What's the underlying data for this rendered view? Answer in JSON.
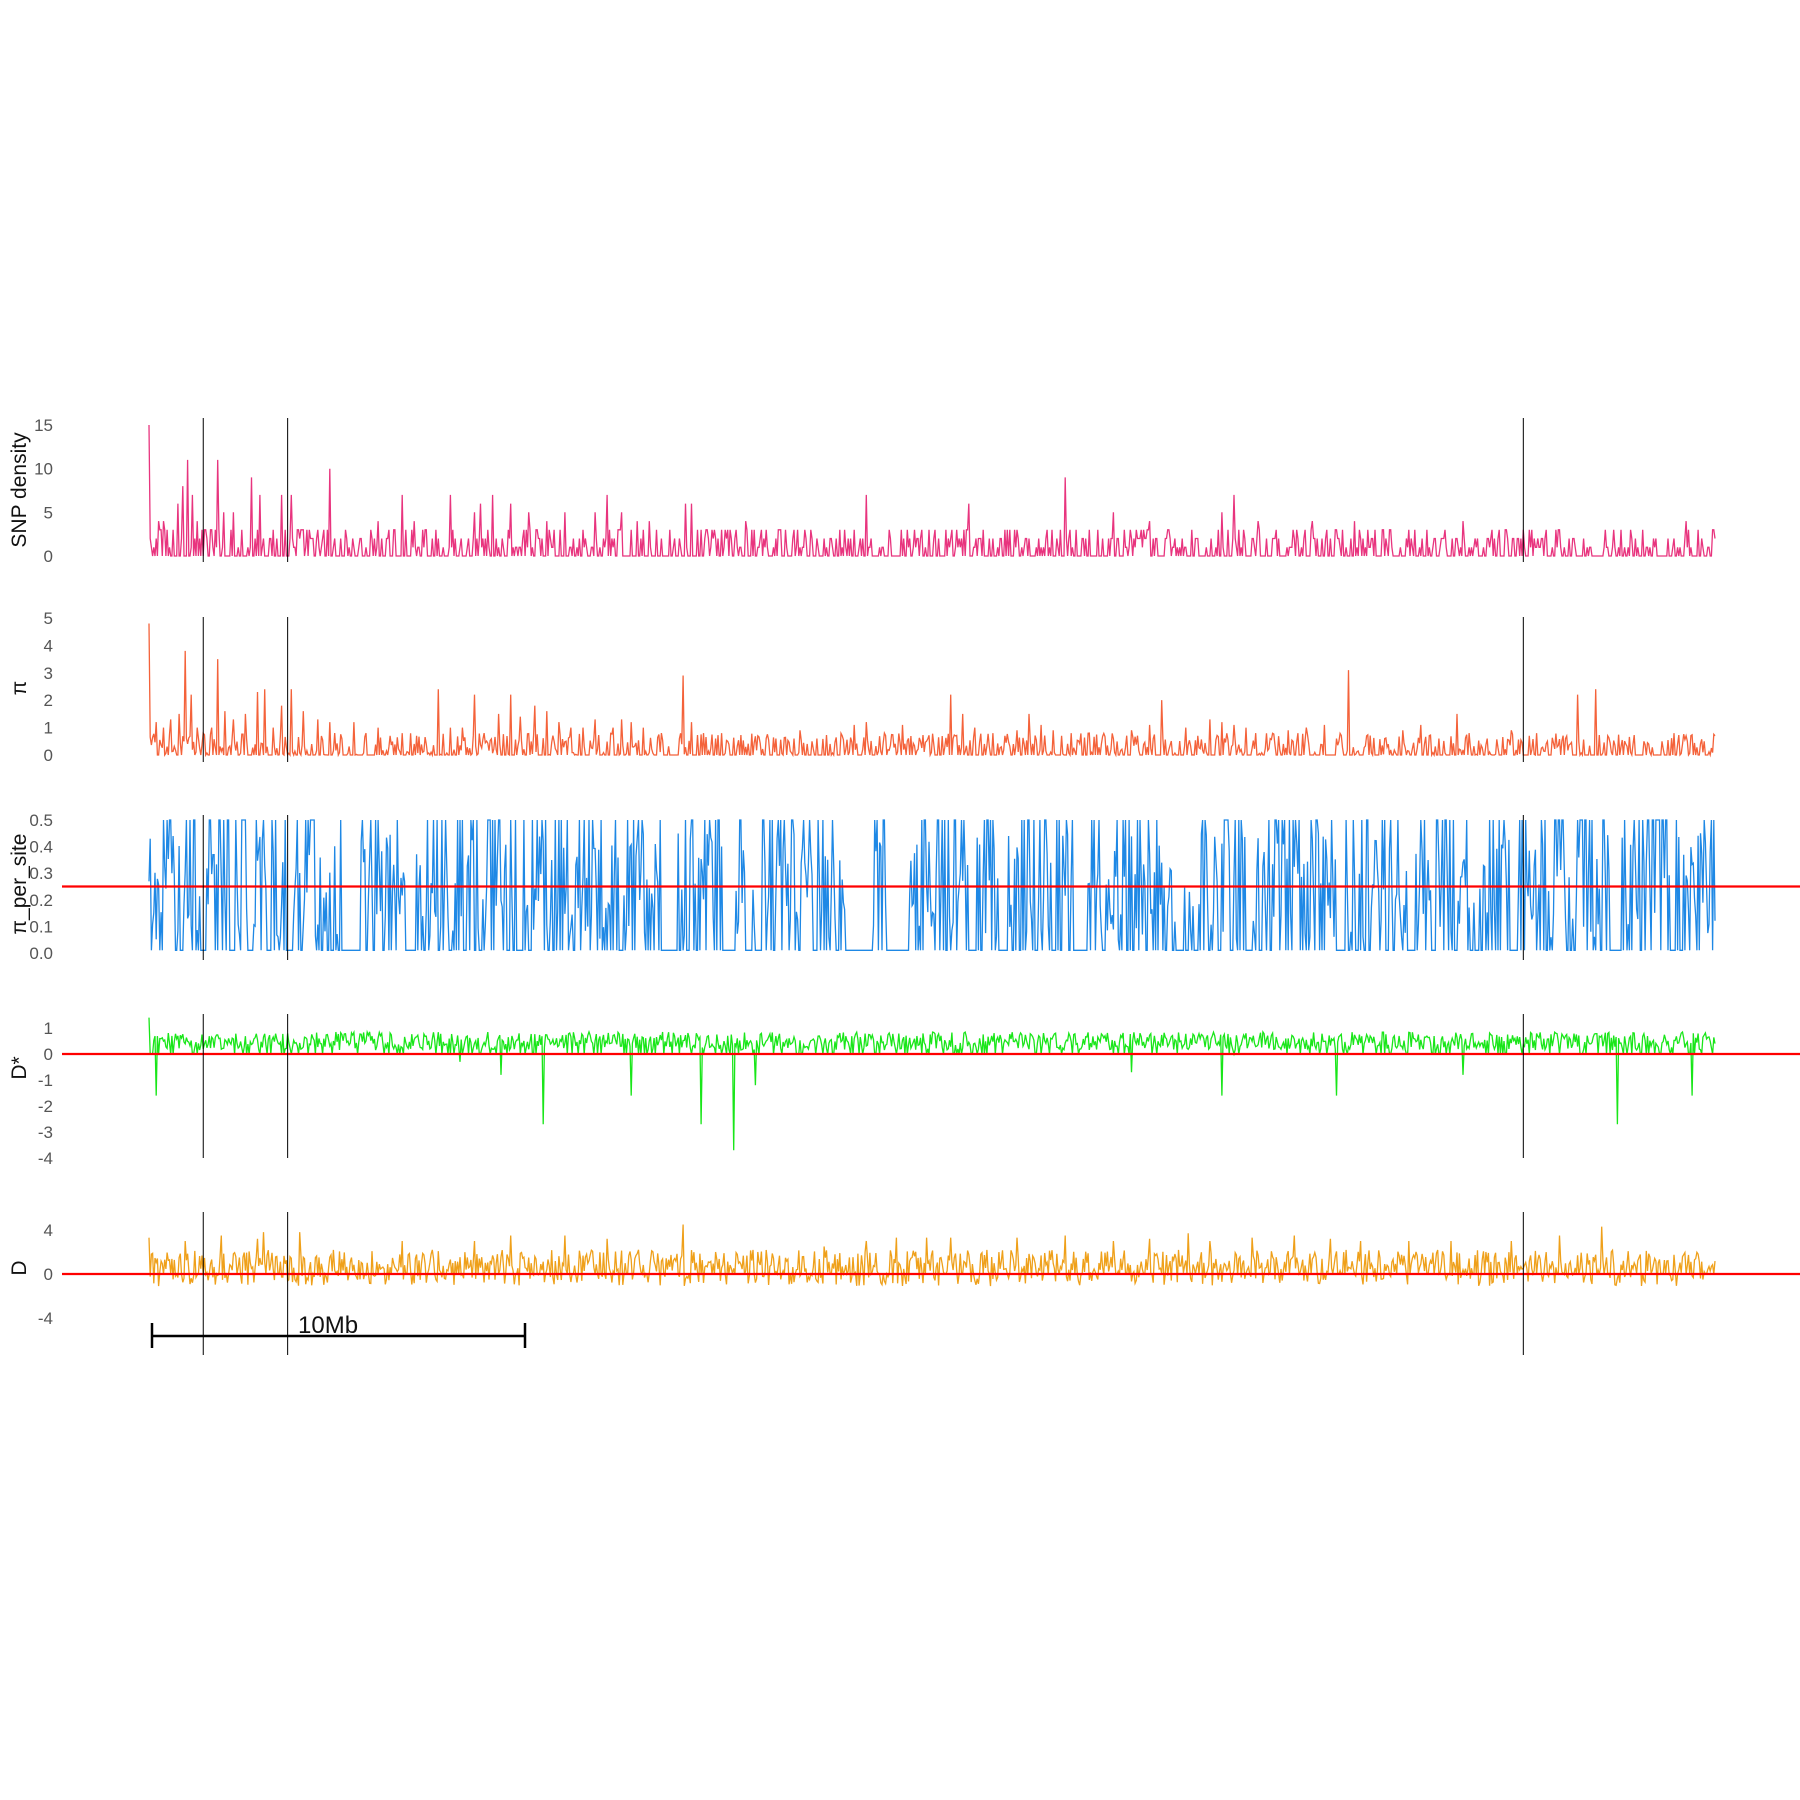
{
  "figure": {
    "panel_order": [
      "snp_density",
      "pi",
      "pi_per_site",
      "d_star",
      "d"
    ]
  },
  "colors": {
    "snp_density": "#e8347e",
    "pi": "#f4623a",
    "pi_per_site": "#1e88e5",
    "d_star": "#19e619",
    "d": "#efa01a",
    "reference_line": "#ff0000",
    "marker_line": "#000000",
    "tick_text": "#555555"
  },
  "scale_bar": {
    "label": "10Mb",
    "length_mb": 10
  },
  "chart_data": [
    {
      "id": "snp_density",
      "type": "line",
      "ylabel": "SNP density",
      "yticks": [
        "0",
        "5",
        "10",
        "15"
      ],
      "ylim": [
        0,
        15
      ],
      "n_windows": 1300,
      "peaks": [
        [
          0,
          15
        ],
        [
          8,
          4
        ],
        [
          12,
          4
        ],
        [
          15,
          3
        ],
        [
          20,
          3
        ],
        [
          24,
          6
        ],
        [
          28,
          8
        ],
        [
          32,
          11
        ],
        [
          36,
          7
        ],
        [
          40,
          4
        ],
        [
          57,
          11
        ],
        [
          62,
          5
        ],
        [
          70,
          5
        ],
        [
          85,
          9
        ],
        [
          92,
          7
        ],
        [
          100,
          2
        ],
        [
          110,
          7
        ],
        [
          118,
          7
        ],
        [
          128,
          3
        ],
        [
          150,
          10
        ],
        [
          175,
          2
        ],
        [
          190,
          4
        ],
        [
          210,
          7
        ],
        [
          220,
          4
        ],
        [
          230,
          3
        ],
        [
          250,
          7
        ],
        [
          270,
          5
        ],
        [
          275,
          6
        ],
        [
          285,
          7
        ],
        [
          300,
          6
        ],
        [
          315,
          5
        ],
        [
          330,
          4
        ],
        [
          345,
          5
        ],
        [
          370,
          5
        ],
        [
          380,
          7
        ],
        [
          392,
          5
        ],
        [
          400,
          3
        ],
        [
          405,
          4
        ],
        [
          415,
          4
        ],
        [
          440,
          2
        ],
        [
          445,
          6
        ],
        [
          450,
          6
        ],
        [
          470,
          2
        ],
        [
          480,
          3
        ],
        [
          495,
          4
        ],
        [
          510,
          2
        ],
        [
          522,
          3
        ],
        [
          535,
          3
        ],
        [
          545,
          2
        ],
        [
          560,
          2
        ],
        [
          570,
          2
        ],
        [
          582,
          2
        ],
        [
          595,
          7
        ],
        [
          615,
          2
        ],
        [
          640,
          2
        ],
        [
          665,
          2
        ],
        [
          680,
          6
        ],
        [
          700,
          2
        ],
        [
          720,
          3
        ],
        [
          730,
          2
        ],
        [
          745,
          3
        ],
        [
          760,
          9
        ],
        [
          780,
          3
        ],
        [
          800,
          5
        ],
        [
          815,
          2
        ],
        [
          830,
          4
        ],
        [
          845,
          3
        ],
        [
          870,
          2
        ],
        [
          890,
          5
        ],
        [
          900,
          7
        ],
        [
          920,
          4
        ],
        [
          935,
          3
        ],
        [
          950,
          2
        ],
        [
          965,
          4
        ],
        [
          980,
          2
        ],
        [
          1000,
          4
        ],
        [
          1015,
          2
        ],
        [
          1030,
          3
        ],
        [
          1045,
          3
        ],
        [
          1060,
          3
        ],
        [
          1075,
          3
        ],
        [
          1090,
          4
        ],
        [
          1110,
          2
        ],
        [
          1125,
          3
        ],
        [
          1140,
          3
        ],
        [
          1155,
          2
        ],
        [
          1170,
          3
        ],
        [
          1190,
          2
        ],
        [
          1210,
          1
        ],
        [
          1235,
          1
        ],
        [
          1250,
          2
        ],
        [
          1265,
          2
        ],
        [
          1275,
          4
        ],
        [
          1285,
          3
        ],
        [
          1299,
          2
        ]
      ]
    },
    {
      "id": "pi",
      "type": "line",
      "ylabel": "π",
      "yticks": [
        "0",
        "1",
        "2",
        "3",
        "4",
        "5"
      ],
      "ylim": [
        0,
        5
      ],
      "n_windows": 1300,
      "peaks": [
        [
          0,
          4.8
        ],
        [
          6,
          1.2
        ],
        [
          12,
          1.0
        ],
        [
          18,
          1.3
        ],
        [
          25,
          1.5
        ],
        [
          30,
          3.8
        ],
        [
          35,
          2.2
        ],
        [
          40,
          1.0
        ],
        [
          45,
          0.8
        ],
        [
          52,
          1.0
        ],
        [
          57,
          3.5
        ],
        [
          63,
          1.6
        ],
        [
          70,
          1.3
        ],
        [
          80,
          1.5
        ],
        [
          90,
          2.3
        ],
        [
          96,
          2.4
        ],
        [
          103,
          1.0
        ],
        [
          110,
          1.8
        ],
        [
          118,
          2.4
        ],
        [
          128,
          1.6
        ],
        [
          140,
          1.3
        ],
        [
          150,
          1.2
        ],
        [
          160,
          0.6
        ],
        [
          170,
          1.2
        ],
        [
          180,
          0.8
        ],
        [
          190,
          1.0
        ],
        [
          200,
          0.7
        ],
        [
          210,
          0.8
        ],
        [
          222,
          0.7
        ],
        [
          240,
          2.4
        ],
        [
          250,
          1.0
        ],
        [
          260,
          1.0
        ],
        [
          270,
          2.2
        ],
        [
          278,
          0.8
        ],
        [
          290,
          1.5
        ],
        [
          300,
          2.2
        ],
        [
          308,
          1.4
        ],
        [
          320,
          1.8
        ],
        [
          330,
          1.6
        ],
        [
          340,
          1.2
        ],
        [
          350,
          1.0
        ],
        [
          360,
          1.0
        ],
        [
          370,
          1.3
        ],
        [
          385,
          1.0
        ],
        [
          392,
          1.3
        ],
        [
          400,
          1.2
        ],
        [
          410,
          1.0
        ],
        [
          425,
          0.8
        ],
        [
          440,
          0.6
        ],
        [
          443,
          2.9
        ],
        [
          450,
          1.2
        ],
        [
          460,
          0.8
        ],
        [
          470,
          0.6
        ],
        [
          480,
          0.5
        ],
        [
          495,
          0.3
        ],
        [
          505,
          0.7
        ],
        [
          520,
          0.6
        ],
        [
          535,
          0.6
        ],
        [
          540,
          0.9
        ],
        [
          550,
          0.5
        ],
        [
          565,
          0.4
        ],
        [
          575,
          0.7
        ],
        [
          585,
          1.1
        ],
        [
          595,
          1.2
        ],
        [
          610,
          0.8
        ],
        [
          625,
          1.1
        ],
        [
          640,
          0.5
        ],
        [
          665,
          2.2
        ],
        [
          675,
          1.5
        ],
        [
          685,
          1.0
        ],
        [
          700,
          0.8
        ],
        [
          710,
          0.7
        ],
        [
          720,
          0.9
        ],
        [
          730,
          1.5
        ],
        [
          740,
          1.1
        ],
        [
          750,
          0.9
        ],
        [
          765,
          0.8
        ],
        [
          780,
          0.8
        ],
        [
          790,
          0.4
        ],
        [
          800,
          0.6
        ],
        [
          815,
          0.9
        ],
        [
          830,
          1.1
        ],
        [
          840,
          2.0
        ],
        [
          860,
          1.0
        ],
        [
          870,
          0.7
        ],
        [
          880,
          1.3
        ],
        [
          890,
          1.2
        ],
        [
          900,
          1.1
        ],
        [
          910,
          1.0
        ],
        [
          918,
          0.8
        ],
        [
          930,
          0.6
        ],
        [
          945,
          0.9
        ],
        [
          960,
          1.0
        ],
        [
          975,
          1.1
        ],
        [
          985,
          0.6
        ],
        [
          995,
          3.1
        ],
        [
          1010,
          0.7
        ],
        [
          1025,
          0.6
        ],
        [
          1040,
          0.9
        ],
        [
          1055,
          1.1
        ],
        [
          1070,
          0.6
        ],
        [
          1085,
          1.5
        ],
        [
          1095,
          0.8
        ],
        [
          1110,
          0.6
        ],
        [
          1130,
          0.9
        ],
        [
          1145,
          0.7
        ],
        [
          1160,
          0.5
        ],
        [
          1175,
          0.6
        ],
        [
          1185,
          2.2
        ],
        [
          1200,
          2.4
        ],
        [
          1210,
          0.7
        ],
        [
          1225,
          0.4
        ],
        [
          1240,
          0.5
        ],
        [
          1255,
          0.5
        ],
        [
          1265,
          0.8
        ],
        [
          1275,
          0.7
        ],
        [
          1290,
          0.5
        ],
        [
          1299,
          0.7
        ]
      ]
    },
    {
      "id": "pi_per_site",
      "type": "line",
      "ylabel": "π_per_site",
      "yticks": [
        "0.0",
        "0.1",
        "0.2",
        "0.3",
        "0.4",
        "0.5"
      ],
      "ylim": [
        0,
        0.5
      ],
      "n_windows": 1300,
      "reference_line": 0.25,
      "gaps": [
        [
          45,
          47
        ],
        [
          114,
          118
        ],
        [
          160,
          175
        ],
        [
          215,
          218
        ],
        [
          305,
          310
        ],
        [
          425,
          438
        ],
        [
          480,
          483
        ],
        [
          495,
          500
        ],
        [
          578,
          600
        ],
        [
          612,
          630
        ],
        [
          680,
          685
        ],
        [
          705,
          712
        ],
        [
          768,
          778
        ],
        [
          852,
          858
        ],
        [
          910,
          915
        ],
        [
          985,
          992
        ],
        [
          1045,
          1050
        ],
        [
          1130,
          1135
        ],
        [
          1212,
          1218
        ],
        [
          1262,
          1265
        ]
      ]
    },
    {
      "id": "d_star",
      "type": "line",
      "ylabel": "D*",
      "yticks": [
        "-4",
        "-3",
        "-2",
        "-1",
        "0",
        "1"
      ],
      "ylim": [
        -4,
        1.5
      ],
      "n_windows": 1300,
      "reference_line": 0,
      "dips": [
        [
          6,
          -1.6
        ],
        [
          258,
          -0.3
        ],
        [
          292,
          -0.8
        ],
        [
          327,
          -2.7
        ],
        [
          400,
          -1.6
        ],
        [
          458,
          -2.7
        ],
        [
          485,
          -3.7
        ],
        [
          503,
          -1.2
        ],
        [
          815,
          -0.7
        ],
        [
          890,
          -1.6
        ],
        [
          985,
          -1.6
        ],
        [
          1090,
          -0.8
        ],
        [
          1218,
          -2.7
        ],
        [
          1280,
          -1.6
        ]
      ]
    },
    {
      "id": "d",
      "type": "line",
      "ylabel": "D",
      "yticks": [
        "-4",
        "0",
        "4"
      ],
      "ylim": [
        -4,
        6
      ],
      "n_windows": 1300,
      "reference_line": 0,
      "peaks": [
        [
          0,
          3.3
        ],
        [
          30,
          3.0
        ],
        [
          60,
          3.5
        ],
        [
          90,
          3.2
        ],
        [
          95,
          3.8
        ],
        [
          125,
          3.8
        ],
        [
          210,
          3.0
        ],
        [
          270,
          3.0
        ],
        [
          300,
          3.5
        ],
        [
          345,
          3.5
        ],
        [
          380,
          3.2
        ],
        [
          443,
          4.5
        ],
        [
          470,
          2.0
        ],
        [
          505,
          2.0
        ],
        [
          560,
          2.5
        ],
        [
          595,
          3.0
        ],
        [
          620,
          3.3
        ],
        [
          645,
          3.3
        ],
        [
          665,
          3.3
        ],
        [
          720,
          3.3
        ],
        [
          760,
          3.5
        ],
        [
          800,
          3.0
        ],
        [
          830,
          3.2
        ],
        [
          862,
          3.7
        ],
        [
          880,
          3.0
        ],
        [
          915,
          3.3
        ],
        [
          950,
          3.5
        ],
        [
          980,
          3.2
        ],
        [
          1005,
          3.0
        ],
        [
          1045,
          3.0
        ],
        [
          1080,
          3.0
        ],
        [
          1130,
          3.0
        ],
        [
          1170,
          3.5
        ],
        [
          1205,
          4.3
        ]
      ]
    }
  ],
  "marker_positions": [
    45,
    115,
    1140
  ]
}
